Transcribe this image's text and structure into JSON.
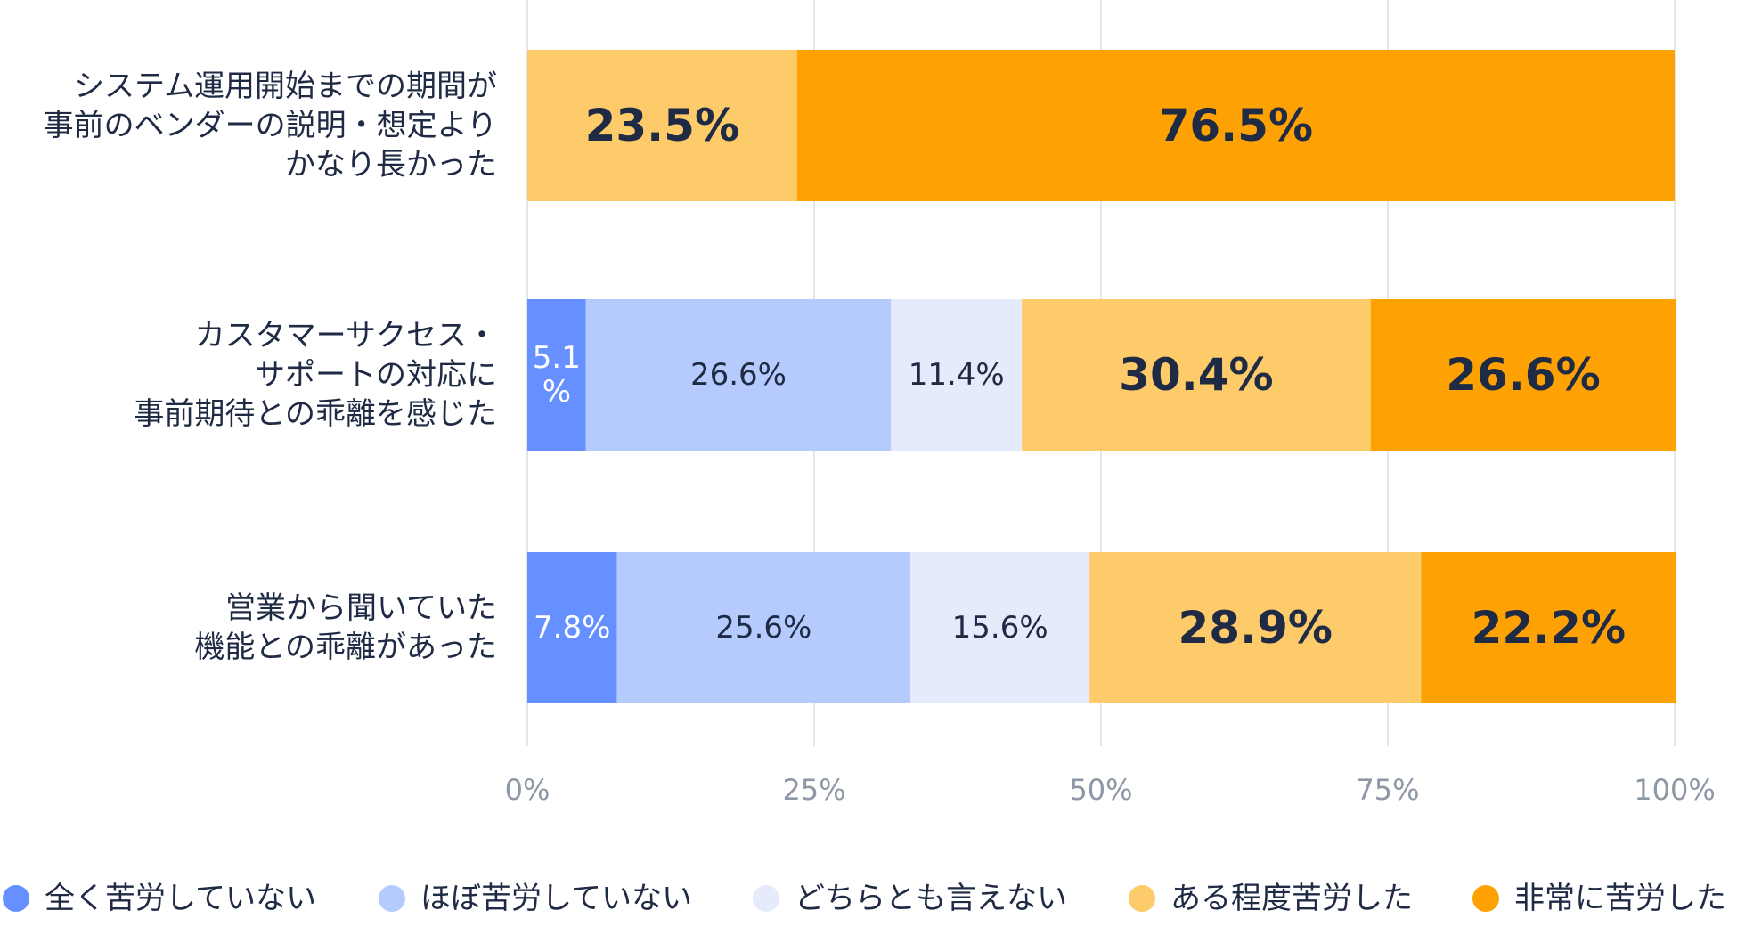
{
  "chart_data": {
    "type": "bar",
    "orientation": "horizontal",
    "stacked": true,
    "percent_stacked": true,
    "categories": [
      [
        "システム運用開始までの期間が",
        "事前のベンダーの説明・想定より",
        "かなり長かった"
      ],
      [
        "カスタマーサクセス・",
        "サポートの対応に",
        "事前期待との乖離を感じた"
      ],
      [
        "営業から聞いていた",
        "機能との乖離があった"
      ]
    ],
    "series": [
      {
        "name": "全く苦労していない",
        "color": "#6690ff",
        "text_color": "#ffffff",
        "emphasis": false,
        "values": [
          0,
          5.1,
          7.8
        ],
        "labels": [
          "",
          "5.1%",
          "7.8%"
        ]
      },
      {
        "name": "ほぼ苦労していない",
        "color": "#b6cbfd",
        "text_color": "#1f2a44",
        "emphasis": false,
        "values": [
          0,
          26.6,
          25.6
        ],
        "labels": [
          "",
          "26.6%",
          "25.6%"
        ]
      },
      {
        "name": "どちらとも言えない",
        "color": "#e6ebfb",
        "text_color": "#1f2a44",
        "emphasis": false,
        "values": [
          0,
          11.4,
          15.6
        ],
        "labels": [
          "",
          "11.4%",
          "15.6%"
        ]
      },
      {
        "name": "ある程度苦労した",
        "color": "#fecb6b",
        "text_color": "#1f2a44",
        "emphasis": true,
        "values": [
          23.5,
          30.4,
          28.9
        ],
        "labels": [
          "23.5%",
          "30.4%",
          "28.9%"
        ]
      },
      {
        "name": "非常に苦労した",
        "color": "#fea203",
        "text_color": "#1f2a44",
        "emphasis": true,
        "values": [
          76.5,
          26.6,
          22.2
        ],
        "labels": [
          "76.5%",
          "26.6%",
          "22.2%"
        ]
      }
    ],
    "xlim": [
      0,
      100
    ],
    "ticks": [
      0,
      25,
      50,
      75,
      100
    ],
    "tick_labels": [
      "0%",
      "25%",
      "50%",
      "75%",
      "100%"
    ],
    "grid": true,
    "legend_position": "bottom",
    "title": "",
    "xlabel": "",
    "ylabel": ""
  }
}
